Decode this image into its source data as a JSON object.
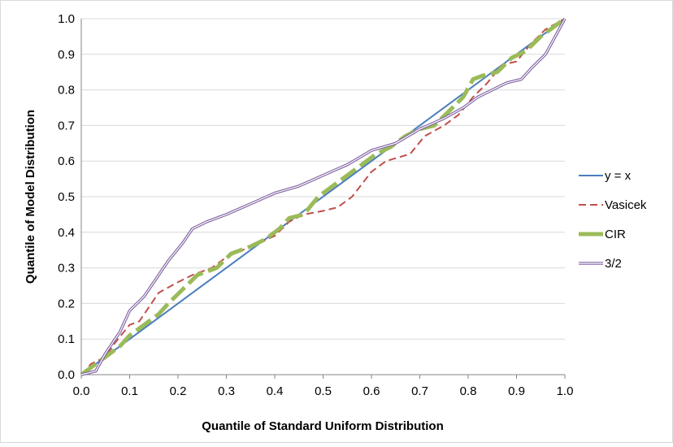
{
  "chart_data": {
    "type": "line",
    "xlabel": "Quantile of Standard Uniform Distribution",
    "ylabel": "Quantile of Model Distribution",
    "xlim": [
      0,
      1
    ],
    "ylim": [
      0,
      1
    ],
    "x_ticks": [
      "0.0",
      "0.1",
      "0.2",
      "0.3",
      "0.4",
      "0.5",
      "0.6",
      "0.7",
      "0.8",
      "0.9",
      "1.0"
    ],
    "y_ticks": [
      "0.0",
      "0.1",
      "0.2",
      "0.3",
      "0.4",
      "0.5",
      "0.6",
      "0.7",
      "0.8",
      "0.9",
      "1.0"
    ],
    "grid": "horizontal",
    "legend_position": "right",
    "series": [
      {
        "name": "y = x",
        "color": "#4a7ebb",
        "style": "solid",
        "points": [
          [
            0,
            0
          ],
          [
            1,
            1
          ]
        ]
      },
      {
        "name": "Vasicek",
        "color": "#c0504d",
        "style": "dashed",
        "points": [
          [
            0,
            0
          ],
          [
            0.02,
            0.03
          ],
          [
            0.05,
            0.05
          ],
          [
            0.07,
            0.09
          ],
          [
            0.1,
            0.14
          ],
          [
            0.12,
            0.15
          ],
          [
            0.14,
            0.19
          ],
          [
            0.16,
            0.23
          ],
          [
            0.2,
            0.26
          ],
          [
            0.23,
            0.28
          ],
          [
            0.27,
            0.3
          ],
          [
            0.3,
            0.33
          ],
          [
            0.35,
            0.36
          ],
          [
            0.4,
            0.39
          ],
          [
            0.43,
            0.43
          ],
          [
            0.46,
            0.45
          ],
          [
            0.5,
            0.46
          ],
          [
            0.53,
            0.47
          ],
          [
            0.56,
            0.5
          ],
          [
            0.6,
            0.57
          ],
          [
            0.63,
            0.6
          ],
          [
            0.68,
            0.62
          ],
          [
            0.71,
            0.67
          ],
          [
            0.75,
            0.7
          ],
          [
            0.78,
            0.73
          ],
          [
            0.81,
            0.78
          ],
          [
            0.84,
            0.82
          ],
          [
            0.87,
            0.87
          ],
          [
            0.9,
            0.88
          ],
          [
            0.93,
            0.93
          ],
          [
            0.96,
            0.97
          ],
          [
            1,
            1
          ]
        ]
      },
      {
        "name": "CIR",
        "color": "#9bbb59",
        "style": "heavy-dashed",
        "points": [
          [
            0,
            0
          ],
          [
            0.03,
            0.03
          ],
          [
            0.05,
            0.05
          ],
          [
            0.08,
            0.08
          ],
          [
            0.1,
            0.11
          ],
          [
            0.13,
            0.14
          ],
          [
            0.16,
            0.17
          ],
          [
            0.18,
            0.2
          ],
          [
            0.21,
            0.24
          ],
          [
            0.24,
            0.28
          ],
          [
            0.28,
            0.3
          ],
          [
            0.31,
            0.34
          ],
          [
            0.35,
            0.36
          ],
          [
            0.38,
            0.38
          ],
          [
            0.41,
            0.41
          ],
          [
            0.43,
            0.44
          ],
          [
            0.46,
            0.45
          ],
          [
            0.49,
            0.5
          ],
          [
            0.52,
            0.53
          ],
          [
            0.55,
            0.56
          ],
          [
            0.58,
            0.59
          ],
          [
            0.61,
            0.62
          ],
          [
            0.64,
            0.64
          ],
          [
            0.67,
            0.67
          ],
          [
            0.7,
            0.69
          ],
          [
            0.73,
            0.7
          ],
          [
            0.76,
            0.74
          ],
          [
            0.79,
            0.78
          ],
          [
            0.81,
            0.83
          ],
          [
            0.83,
            0.84
          ],
          [
            0.86,
            0.85
          ],
          [
            0.89,
            0.89
          ],
          [
            0.92,
            0.91
          ],
          [
            0.95,
            0.95
          ],
          [
            0.98,
            0.98
          ],
          [
            1,
            1
          ]
        ]
      },
      {
        "name": "3/2",
        "color": "#8064a2",
        "style": "double",
        "points": [
          [
            0,
            0
          ],
          [
            0.03,
            0.01
          ],
          [
            0.05,
            0.06
          ],
          [
            0.08,
            0.12
          ],
          [
            0.1,
            0.18
          ],
          [
            0.13,
            0.22
          ],
          [
            0.15,
            0.26
          ],
          [
            0.18,
            0.32
          ],
          [
            0.21,
            0.37
          ],
          [
            0.23,
            0.41
          ],
          [
            0.26,
            0.43
          ],
          [
            0.3,
            0.45
          ],
          [
            0.35,
            0.48
          ],
          [
            0.4,
            0.51
          ],
          [
            0.45,
            0.53
          ],
          [
            0.5,
            0.56
          ],
          [
            0.55,
            0.59
          ],
          [
            0.6,
            0.63
          ],
          [
            0.65,
            0.65
          ],
          [
            0.7,
            0.69
          ],
          [
            0.75,
            0.72
          ],
          [
            0.79,
            0.75
          ],
          [
            0.82,
            0.78
          ],
          [
            0.85,
            0.8
          ],
          [
            0.88,
            0.82
          ],
          [
            0.91,
            0.83
          ],
          [
            0.93,
            0.86
          ],
          [
            0.96,
            0.9
          ],
          [
            0.98,
            0.95
          ],
          [
            1,
            1
          ]
        ]
      }
    ]
  }
}
